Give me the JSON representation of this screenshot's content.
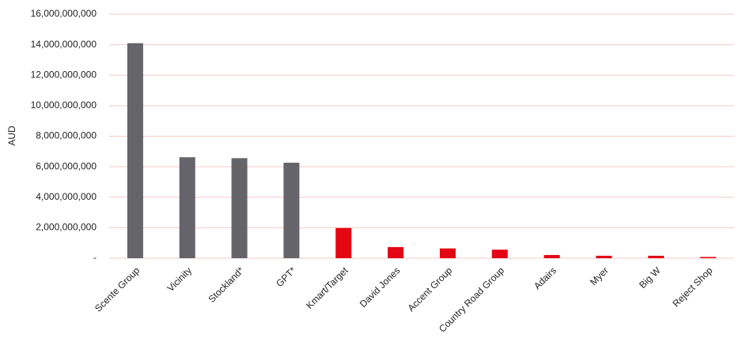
{
  "chart_data": {
    "type": "bar",
    "y_label": "AUD",
    "categories": [
      "Scente Group",
      "Vicinity",
      "Stockland*",
      "GPT*",
      "Kmart/Target",
      "David Jones",
      "Accent Group",
      "Country Road Group",
      "Adairs",
      "Myer",
      "Big W",
      "Reject Shop"
    ],
    "values": [
      14100000000,
      6620000000,
      6560000000,
      6260000000,
      1980000000,
      730000000,
      640000000,
      560000000,
      210000000,
      160000000,
      160000000,
      80000000
    ],
    "colors": [
      "#646469",
      "#646469",
      "#646469",
      "#646469",
      "#e30613",
      "#e30613",
      "#e30613",
      "#e30613",
      "#e30613",
      "#e30613",
      "#e30613",
      "#e30613"
    ],
    "ylim": [
      0,
      16000000000
    ],
    "yticks": [
      {
        "value": 0,
        "label": "-"
      },
      {
        "value": 2000000000,
        "label": "2,000,000,000"
      },
      {
        "value": 4000000000,
        "label": "4,000,000,000"
      },
      {
        "value": 6000000000,
        "label": "6,000,000,000"
      },
      {
        "value": 8000000000,
        "label": "8,000,000,000"
      },
      {
        "value": 10000000000,
        "label": "10,000,000,000"
      },
      {
        "value": 12000000000,
        "label": "12,000,000,000"
      },
      {
        "value": 14000000000,
        "label": "14,000,000,000"
      },
      {
        "value": 16000000000,
        "label": "16,000,000,000"
      }
    ],
    "grid": true
  }
}
